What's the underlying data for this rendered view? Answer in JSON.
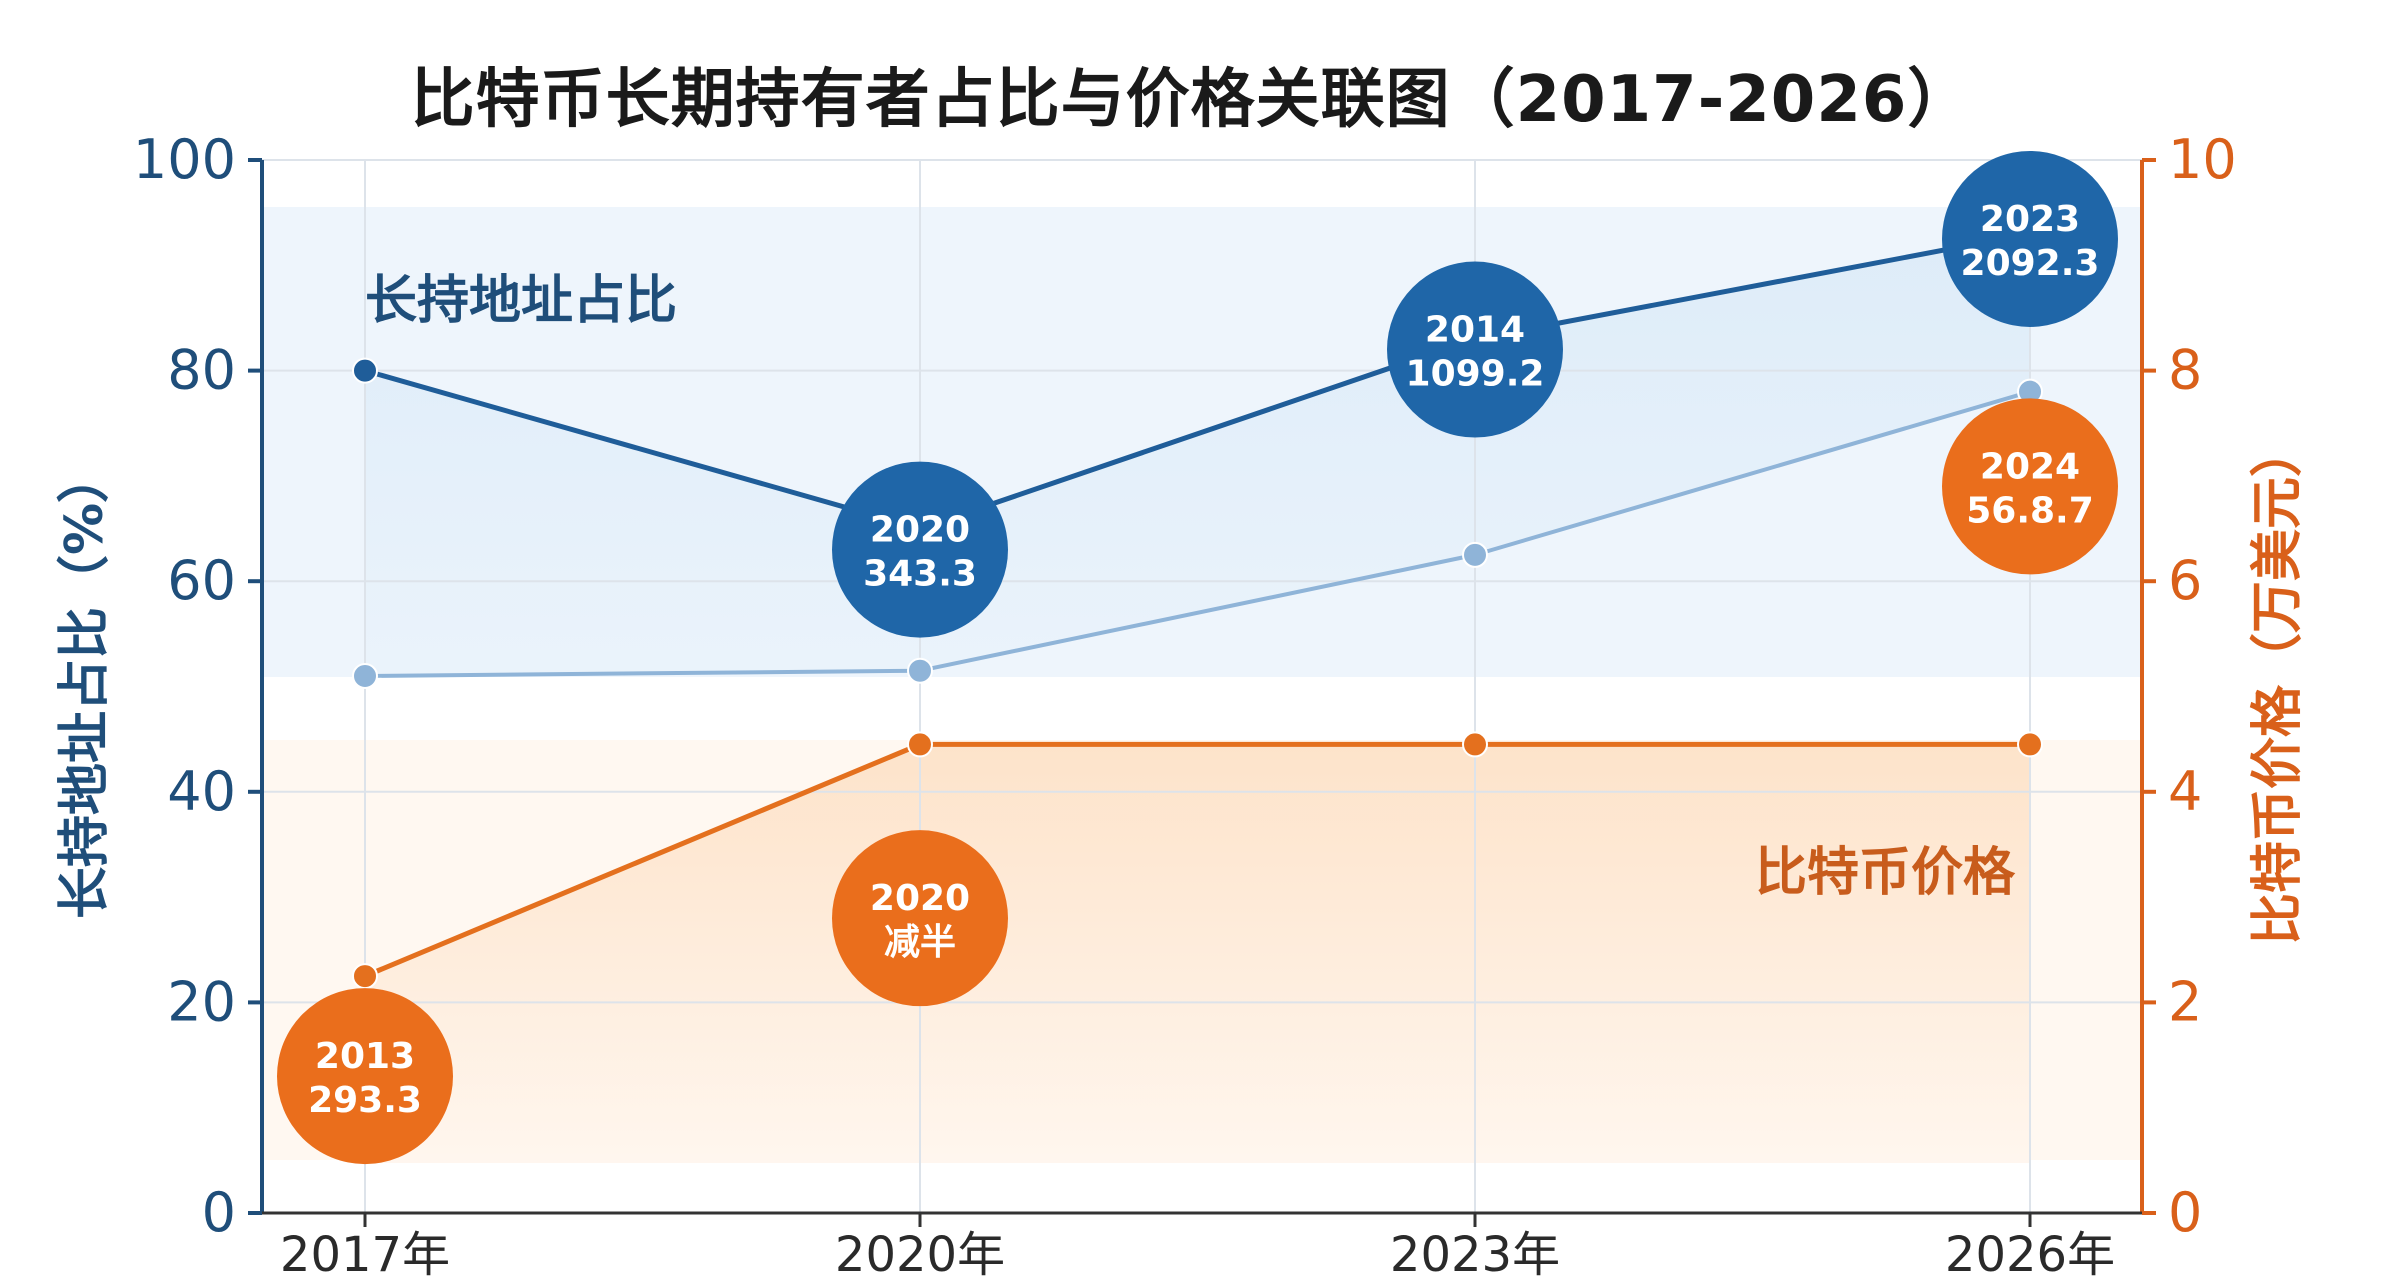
{
  "chart_data": {
    "type": "line",
    "title": "比特币长期持有者占比与价格关联图（2017-2026）",
    "categories": [
      "2017年",
      "2020年",
      "2023年",
      "2026年"
    ],
    "y_left": {
      "label": "长持地址占比（%）",
      "range": [
        0,
        100
      ],
      "ticks": [
        "0",
        "20",
        "40",
        "60",
        "80",
        "100"
      ]
    },
    "y_right": {
      "label": "比特币价格（万美元）",
      "range": [
        0,
        10
      ],
      "ticks": [
        "0",
        "2",
        "4",
        "6",
        "8",
        "10"
      ]
    },
    "series": [
      {
        "name": "长持地址占比",
        "axis": "left",
        "color": "#1f5d99",
        "values": [
          80,
          65,
          83,
          93
        ]
      },
      {
        "name": "",
        "axis": "left",
        "color": "#8fb4d8",
        "values": [
          51,
          51.5,
          62.5,
          78
        ]
      },
      {
        "name": "比特币价格",
        "axis": "right",
        "color": "#e4701e",
        "values": [
          2.25,
          4.45,
          4.45,
          4.45
        ]
      }
    ],
    "annotations": [
      {
        "line1": "2020",
        "line2": "343.3",
        "color": "#1f66a8",
        "x_index": 1,
        "y_left": 63
      },
      {
        "line1": "2014",
        "line2": "1099.2",
        "color": "#1f66a8",
        "x_index": 2,
        "y_left": 82
      },
      {
        "line1": "2023",
        "line2": "2092.3",
        "color": "#1f66a8",
        "x_index": 3,
        "y_left": 92.5
      },
      {
        "line1": "2024",
        "line2": "56.8.7",
        "color": "#ea6e1c",
        "x_index": 3,
        "y_left": 69
      },
      {
        "line1": "2020",
        "line2": "减半",
        "color": "#ea6e1c",
        "x_index": 1,
        "y_left": 28
      },
      {
        "line1": "2013",
        "line2": "293.3",
        "color": "#ea6e1c",
        "x_index": 0,
        "y_left": 13
      }
    ],
    "grid": true,
    "legend": "none"
  }
}
